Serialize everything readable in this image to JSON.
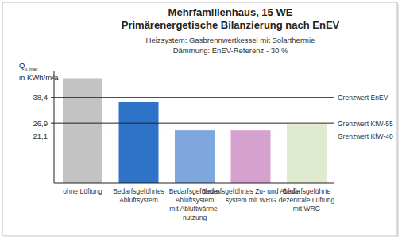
{
  "chart_data": {
    "type": "bar",
    "title": [
      "Mehrfamilienhaus, 15 WE",
      "Primärenergetische Bilanzierung nach EnEV"
    ],
    "subtitle": [
      "Heizsystem: Gasbrennwertkessel mit Solarthermie",
      "Dämmung: EnEV-Referenz - 30 %"
    ],
    "ylabel": "Q",
    "ylabel_subscript": "p, max",
    "ylabel_unit": "in KWh/m²a",
    "categories": [
      [
        "ohne Lüftung"
      ],
      [
        "Bedarfsgeführtes",
        "Abluftsystem"
      ],
      [
        "Bedarfsgeführtes",
        "Abluftsystem",
        "mit Abluftwärme-",
        "nutzung"
      ],
      [
        "Bedarfsgeführtes Zu- und Abluft-",
        "system mit WRG"
      ],
      [
        "Bedarfsgeführte",
        "dezentrale Lüftung",
        "mit WRG"
      ]
    ],
    "values": [
      47,
      36.4,
      23.7,
      23.7,
      26.5
    ],
    "colors": [
      "#c3c3c3",
      "#2f73c9",
      "#7ea7de",
      "#d5a2cf",
      "#dfeacf"
    ],
    "ylim": [
      0,
      50
    ],
    "yticks": [
      {
        "value": 38.4,
        "label": "38,4"
      },
      {
        "value": 26.9,
        "label": "26,9"
      },
      {
        "value": 21.1,
        "label": "21,1"
      }
    ],
    "reference_lines": [
      {
        "value": 38.4,
        "label": "Grenzwert EnEV"
      },
      {
        "value": 26.9,
        "label": "Grenzwert KfW-55"
      },
      {
        "value": 21.1,
        "label": "Grenzwert KfW-40"
      }
    ],
    "grid": false,
    "data_labels": false
  }
}
